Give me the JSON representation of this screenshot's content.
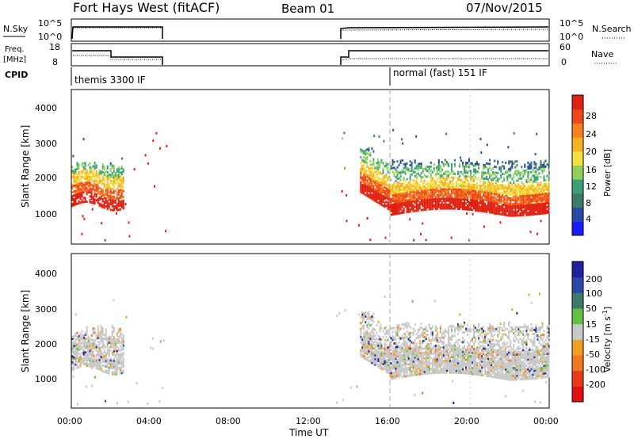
{
  "header": {
    "station": "Fort Hays West (fitACF)",
    "beam": "Beam 01",
    "date": "07/Nov/2015"
  },
  "panels": {
    "nsky": {
      "label": "N.Sky",
      "ticks": [
        "10^5",
        "10^0"
      ]
    },
    "nsearch": {
      "label": "N.Search",
      "ticks": [
        "10^5",
        "10^0"
      ]
    },
    "freq": {
      "label_line1": "Freq.",
      "label_line2": "[MHz]",
      "ticks": [
        "18",
        "8"
      ]
    },
    "nave": {
      "label": "Nave",
      "ticks": [
        "60",
        "0"
      ]
    },
    "cpid": {
      "label": "CPID",
      "segments": [
        {
          "name": "themis 3300 IF",
          "start_hour": 0
        },
        {
          "name": "normal (fast) 151 IF",
          "start_hour": 16
        }
      ]
    }
  },
  "axes": {
    "x_label": "Time UT",
    "x_ticks": [
      "00:00",
      "04:00",
      "08:00",
      "12:00",
      "16:00",
      "20:00",
      "00:00"
    ],
    "y_label": "Slant Range [km]",
    "y_ticks": [
      "1000",
      "2000",
      "3000",
      "4000"
    ]
  },
  "colorbars": {
    "power": {
      "label": "Power [dB]",
      "ticks": [
        "4",
        "8",
        "12",
        "16",
        "20",
        "24",
        "28"
      ],
      "colors": [
        "#1a1aff",
        "#2a4aa8",
        "#3c7a6a",
        "#3aa07a",
        "#8fcf5a",
        "#f0e040",
        "#f7b020",
        "#f58020",
        "#f04818",
        "#e02010"
      ]
    },
    "velocity": {
      "label": "Velocity [m s",
      "label_sup": "-1",
      "label_end": "]",
      "ticks": [
        "200",
        "100",
        "50",
        "15",
        "-15",
        "-50",
        "-100",
        "-200"
      ],
      "colors": [
        "#2020a0",
        "#2a4aa8",
        "#3c7a6a",
        "#60c040",
        "#c8c8c8",
        "#f0a020",
        "#f07820",
        "#e83a18",
        "#e01010"
      ]
    }
  },
  "chart_data": {
    "type": "heatmap",
    "title": "Fort Hays West (fitACF)",
    "xlabel": "Time UT",
    "ylabel": "Slant Range [km]",
    "xlim": [
      0,
      24
    ],
    "ylim": [
      200,
      4600
    ],
    "data_gaps_hours": [
      [
        4.9,
        13.5
      ]
    ],
    "regions": [
      {
        "panel": "power",
        "start_hour": 0.0,
        "end_hour": 2.6,
        "range_km": [
          1200,
          2600
        ],
        "typical_power_dB": 22
      },
      {
        "panel": "power",
        "start_hour": 14.5,
        "end_hour": 24.0,
        "range_km": [
          950,
          2900
        ],
        "typical_power_dB": 24
      },
      {
        "panel": "velocity",
        "start_hour": 0.0,
        "end_hour": 2.6,
        "range_km": [
          1200,
          2600
        ],
        "typical_velocity_ms": -30
      },
      {
        "panel": "velocity",
        "start_hour": 14.5,
        "end_hour": 24.0,
        "range_km": [
          950,
          2900
        ],
        "typical_velocity_ms": 0
      }
    ]
  }
}
